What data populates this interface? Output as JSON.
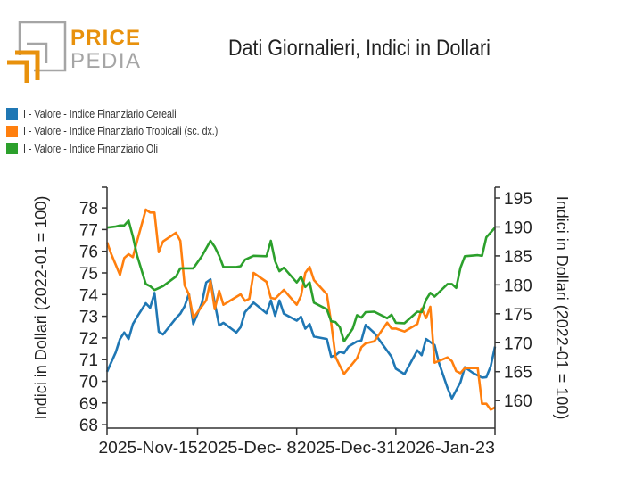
{
  "logo": {
    "text_top": "PRICE",
    "text_bottom": "PEDIA",
    "colors": {
      "orange": "#e8910c",
      "gray": "#a5a5a5"
    }
  },
  "chart_data": {
    "type": "line",
    "title": "Dati Giornalieri, Indici in Dollari",
    "ylabel": "Indici in Dollari (2022-01 = 100)",
    "y2label": "Indici in Dollari (2022-01 = 100)",
    "xlim": [
      "2025-10-25",
      "2026-01-23"
    ],
    "ylim": [
      67.84,
      78.95
    ],
    "y2lim": [
      155.25,
      196.85
    ],
    "xticks": [
      {
        "date": "2025-10-25",
        "label": ""
      },
      {
        "date": "2025-11-15",
        "label": "2025-Nov-15"
      },
      {
        "date": "2025-12-08",
        "label": "2025-Dec- 8"
      },
      {
        "date": "2025-12-31",
        "label": "2025-Dec-31"
      },
      {
        "date": "2026-01-23",
        "label": "2026-Jan-23"
      }
    ],
    "yticks": [
      68,
      69,
      70,
      71,
      72,
      73,
      74,
      75,
      76,
      77,
      78
    ],
    "y2ticks": [
      160,
      165,
      170,
      175,
      180,
      185,
      190,
      195
    ],
    "grid": false,
    "legend_placement": "top-left",
    "series": [
      {
        "name": "I - Valore - Indice Finanziario Cereali",
        "color": "#1f77b4",
        "axis": "left",
        "points": [
          [
            "2025-10-25",
            70.44
          ],
          [
            "2025-10-27",
            71.33
          ],
          [
            "2025-10-28",
            71.95
          ],
          [
            "2025-10-29",
            72.25
          ],
          [
            "2025-10-30",
            71.95
          ],
          [
            "2025-10-31",
            72.64
          ],
          [
            "2025-11-01",
            72.98
          ],
          [
            "2025-11-03",
            73.6
          ],
          [
            "2025-11-04",
            73.39
          ],
          [
            "2025-11-05",
            74.08
          ],
          [
            "2025-11-06",
            72.29
          ],
          [
            "2025-11-07",
            72.16
          ],
          [
            "2025-11-10",
            72.91
          ],
          [
            "2025-11-11",
            73.12
          ],
          [
            "2025-11-12",
            73.46
          ],
          [
            "2025-11-13",
            74.04
          ],
          [
            "2025-11-14",
            72.64
          ],
          [
            "2025-11-16",
            73.6
          ],
          [
            "2025-11-17",
            74.56
          ],
          [
            "2025-11-18",
            74.7
          ],
          [
            "2025-11-19",
            73.6
          ],
          [
            "2025-11-20",
            72.57
          ],
          [
            "2025-11-21",
            72.7
          ],
          [
            "2025-11-24",
            72.25
          ],
          [
            "2025-11-25",
            72.5
          ],
          [
            "2025-11-26",
            73.19
          ],
          [
            "2025-11-28",
            73.63
          ],
          [
            "2025-12-01",
            73.14
          ],
          [
            "2025-12-02",
            73.73
          ],
          [
            "2025-12-03",
            73.02
          ],
          [
            "2025-12-04",
            73.73
          ],
          [
            "2025-12-05",
            73.12
          ],
          [
            "2025-12-08",
            72.8
          ],
          [
            "2025-12-09",
            72.98
          ],
          [
            "2025-12-10",
            72.43
          ],
          [
            "2025-12-11",
            72.64
          ],
          [
            "2025-12-12",
            72.06
          ],
          [
            "2025-12-15",
            71.95
          ],
          [
            "2025-12-16",
            71.13
          ],
          [
            "2025-12-17",
            71.2
          ],
          [
            "2025-12-18",
            71.36
          ],
          [
            "2025-12-19",
            71.3
          ],
          [
            "2025-12-20",
            71.6
          ],
          [
            "2025-12-22",
            71.84
          ],
          [
            "2025-12-23",
            71.88
          ],
          [
            "2025-12-24",
            72.6
          ],
          [
            "2025-12-26",
            72.23
          ],
          [
            "2025-12-30",
            71.13
          ],
          [
            "2025-12-31",
            70.58
          ],
          [
            "2026-01-02",
            70.33
          ],
          [
            "2026-01-05",
            71.43
          ],
          [
            "2026-01-06",
            71.2
          ],
          [
            "2026-01-07",
            71.95
          ],
          [
            "2026-01-09",
            71.67
          ],
          [
            "2026-01-10",
            70.85
          ],
          [
            "2026-01-12",
            69.69
          ],
          [
            "2026-01-13",
            69.21
          ],
          [
            "2026-01-15",
            69.96
          ],
          [
            "2026-01-16",
            70.65
          ],
          [
            "2026-01-18",
            70.37
          ],
          [
            "2026-01-20",
            70.17
          ],
          [
            "2026-01-21",
            70.19
          ],
          [
            "2026-01-22",
            70.69
          ],
          [
            "2026-01-23",
            71.6
          ]
        ]
      },
      {
        "name": "I - Valore - Indice Finanziario Tropicali (sc. dx.)",
        "color": "#ff7f0e",
        "axis": "right",
        "points": [
          [
            "2025-10-25",
            187.34
          ],
          [
            "2025-10-26",
            185.29
          ],
          [
            "2025-10-28",
            181.7
          ],
          [
            "2025-10-29",
            184.63
          ],
          [
            "2025-10-30",
            185.29
          ],
          [
            "2025-10-31",
            184.78
          ],
          [
            "2025-11-01",
            187.6
          ],
          [
            "2025-11-03",
            193.0
          ],
          [
            "2025-11-04",
            192.49
          ],
          [
            "2025-11-05",
            192.49
          ],
          [
            "2025-11-06",
            185.65
          ],
          [
            "2025-11-07",
            187.5
          ],
          [
            "2025-11-10",
            188.99
          ],
          [
            "2025-11-11",
            187.6
          ],
          [
            "2025-11-12",
            179.9
          ],
          [
            "2025-11-13",
            178.36
          ],
          [
            "2025-11-14",
            174.25
          ],
          [
            "2025-11-17",
            177.33
          ],
          [
            "2025-11-18",
            180.67
          ],
          [
            "2025-11-19",
            175.79
          ],
          [
            "2025-11-20",
            178.98
          ],
          [
            "2025-11-21",
            176.56
          ],
          [
            "2025-11-25",
            178.36
          ],
          [
            "2025-11-26",
            177.23
          ],
          [
            "2025-11-27",
            177.59
          ],
          [
            "2025-11-28",
            182.06
          ],
          [
            "2025-12-01",
            180.52
          ],
          [
            "2025-12-02",
            177.74
          ],
          [
            "2025-12-03",
            177.59
          ],
          [
            "2025-12-05",
            179.13
          ],
          [
            "2025-12-08",
            176.56
          ],
          [
            "2025-12-09",
            178.1
          ],
          [
            "2025-12-10",
            182.06
          ],
          [
            "2025-12-11",
            183.09
          ],
          [
            "2025-12-12",
            180.82
          ],
          [
            "2025-12-15",
            178.36
          ],
          [
            "2025-12-16",
            173.47
          ],
          [
            "2025-12-17",
            167.57
          ],
          [
            "2025-12-18",
            166.03
          ],
          [
            "2025-12-19",
            164.6
          ],
          [
            "2025-12-22",
            167.31
          ],
          [
            "2025-12-23",
            169.22
          ],
          [
            "2025-12-24",
            169.88
          ],
          [
            "2025-12-26",
            170.24
          ],
          [
            "2025-12-29",
            173.47
          ],
          [
            "2025-12-30",
            172.45
          ],
          [
            "2025-12-31",
            172.45
          ],
          [
            "2026-01-02",
            171.93
          ],
          [
            "2026-01-05",
            173.23
          ],
          [
            "2026-01-06",
            175.89
          ],
          [
            "2026-01-07",
            174.25
          ],
          [
            "2026-01-08",
            176.2
          ],
          [
            "2026-01-09",
            166.54
          ],
          [
            "2026-01-12",
            167.47
          ],
          [
            "2026-01-13",
            166.8
          ],
          [
            "2026-01-14",
            165.1
          ],
          [
            "2026-01-15",
            164.74
          ],
          [
            "2026-01-16",
            165.62
          ],
          [
            "2026-01-19",
            165.62
          ],
          [
            "2026-01-20",
            159.45
          ],
          [
            "2026-01-21",
            159.45
          ],
          [
            "2026-01-22",
            158.43
          ],
          [
            "2026-01-23",
            158.83
          ]
        ]
      },
      {
        "name": "I - Valore - Indice Finanziario Oli",
        "color": "#2ca02c",
        "axis": "left",
        "points": [
          [
            "2025-10-25",
            77.09
          ],
          [
            "2025-10-27",
            77.14
          ],
          [
            "2025-10-28",
            77.19
          ],
          [
            "2025-10-29",
            77.19
          ],
          [
            "2025-10-30",
            77.41
          ],
          [
            "2025-10-31",
            76.68
          ],
          [
            "2025-11-01",
            75.79
          ],
          [
            "2025-11-03",
            74.49
          ],
          [
            "2025-11-04",
            74.39
          ],
          [
            "2025-11-05",
            74.21
          ],
          [
            "2025-11-07",
            74.39
          ],
          [
            "2025-11-10",
            74.83
          ],
          [
            "2025-11-11",
            75.21
          ],
          [
            "2025-11-14",
            75.21
          ],
          [
            "2025-11-16",
            75.77
          ],
          [
            "2025-11-18",
            76.48
          ],
          [
            "2025-11-19",
            76.2
          ],
          [
            "2025-11-20",
            75.79
          ],
          [
            "2025-11-21",
            75.27
          ],
          [
            "2025-11-24",
            75.27
          ],
          [
            "2025-11-25",
            75.31
          ],
          [
            "2025-11-26",
            75.61
          ],
          [
            "2025-11-28",
            75.79
          ],
          [
            "2025-12-01",
            75.77
          ],
          [
            "2025-12-02",
            76.48
          ],
          [
            "2025-12-03",
            75.54
          ],
          [
            "2025-12-04",
            75.08
          ],
          [
            "2025-12-05",
            75.24
          ],
          [
            "2025-12-08",
            74.56
          ],
          [
            "2025-12-09",
            74.83
          ],
          [
            "2025-12-10",
            74.35
          ],
          [
            "2025-12-11",
            74.56
          ],
          [
            "2025-12-12",
            73.63
          ],
          [
            "2025-12-15",
            73.32
          ],
          [
            "2025-12-16",
            72.77
          ],
          [
            "2025-12-17",
            72.73
          ],
          [
            "2025-12-18",
            72.5
          ],
          [
            "2025-12-19",
            71.84
          ],
          [
            "2025-12-21",
            72.43
          ],
          [
            "2025-12-22",
            73.05
          ],
          [
            "2025-12-23",
            72.94
          ],
          [
            "2025-12-24",
            73.19
          ],
          [
            "2025-12-26",
            73.21
          ],
          [
            "2025-12-29",
            72.91
          ],
          [
            "2025-12-30",
            73.07
          ],
          [
            "2025-12-31",
            72.7
          ],
          [
            "2026-01-02",
            72.68
          ],
          [
            "2026-01-05",
            73.21
          ],
          [
            "2026-01-06",
            73.19
          ],
          [
            "2026-01-07",
            73.76
          ],
          [
            "2026-01-08",
            74.08
          ],
          [
            "2026-01-09",
            73.91
          ],
          [
            "2026-01-12",
            74.49
          ],
          [
            "2026-01-13",
            74.49
          ],
          [
            "2026-01-14",
            74.31
          ],
          [
            "2026-01-15",
            75.24
          ],
          [
            "2026-01-16",
            75.77
          ],
          [
            "2026-01-19",
            75.82
          ],
          [
            "2026-01-20",
            75.79
          ],
          [
            "2026-01-21",
            76.64
          ],
          [
            "2026-01-23",
            77.09
          ]
        ]
      }
    ]
  }
}
